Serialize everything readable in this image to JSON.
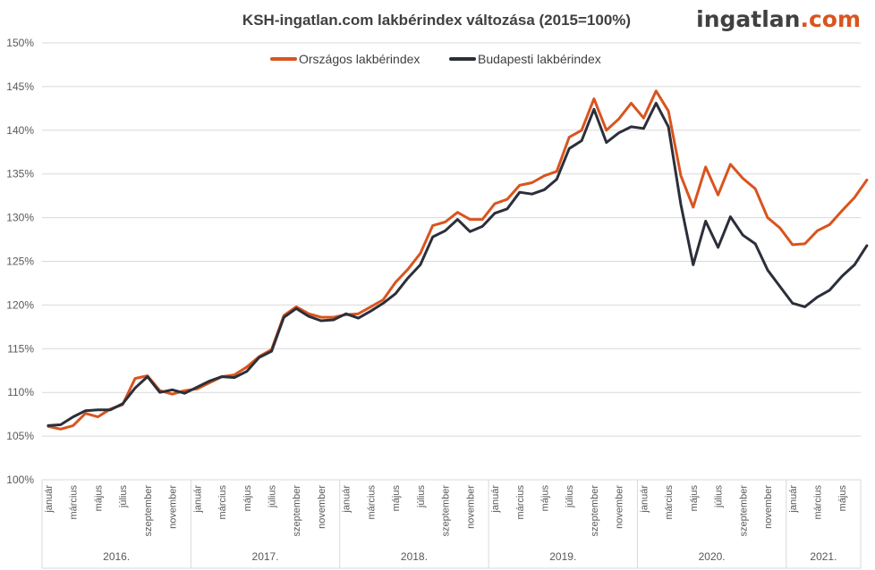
{
  "brand": {
    "prefix": "ingatlan",
    "suffix": ".com",
    "prefix_color": "#404040",
    "suffix_color": "#d9541e"
  },
  "chart_data": {
    "type": "line",
    "title": "KSH-ingatlan.com lakbérindex változása (2015=100%)",
    "xlabel": "",
    "ylabel": "",
    "ylim": [
      100,
      150
    ],
    "ytick_step": 5,
    "ytick_labels": [
      "100%",
      "105%",
      "110%",
      "115%",
      "120%",
      "125%",
      "130%",
      "135%",
      "140%",
      "145%",
      "150%"
    ],
    "grid": true,
    "legend_position": "top-center",
    "month_tick_labels": [
      "január",
      "március",
      "május",
      "július",
      "szeptember",
      "november"
    ],
    "years": [
      "2016.",
      "2017.",
      "2018.",
      "2019.",
      "2020.",
      "2021."
    ],
    "months_per_year": [
      12,
      12,
      12,
      12,
      12,
      6
    ],
    "series": [
      {
        "name": "Országos lakbérindex",
        "color": "#d9541e",
        "values": [
          106.1,
          105.8,
          106.2,
          107.6,
          107.2,
          108.1,
          108.6,
          111.6,
          111.9,
          110.2,
          109.8,
          110.2,
          110.4,
          111.1,
          111.8,
          112.0,
          112.9,
          114.1,
          114.9,
          118.8,
          119.8,
          119.0,
          118.6,
          118.6,
          118.9,
          119.0,
          119.8,
          120.6,
          122.6,
          124.1,
          125.9,
          129.1,
          129.5,
          130.6,
          129.8,
          129.8,
          131.6,
          132.1,
          133.7,
          134.0,
          134.8,
          135.3,
          139.2,
          140.0,
          143.6,
          140.0,
          141.3,
          143.1,
          141.4,
          144.5,
          142.2,
          134.8,
          131.2,
          135.8,
          132.6,
          136.1,
          134.5,
          133.3,
          130.0,
          128.8,
          126.9,
          127.0,
          128.5,
          129.2,
          130.8,
          132.3,
          134.3
        ]
      },
      {
        "name": "Budapesti lakbérindex",
        "color": "#2b2f3a",
        "values": [
          106.2,
          106.3,
          107.2,
          107.9,
          108.0,
          108.0,
          108.7,
          110.5,
          111.8,
          110.0,
          110.3,
          109.9,
          110.6,
          111.3,
          111.8,
          111.7,
          112.4,
          114.0,
          114.7,
          118.6,
          119.6,
          118.7,
          118.2,
          118.3,
          119.0,
          118.5,
          119.3,
          120.2,
          121.3,
          123.1,
          124.6,
          127.8,
          128.5,
          129.8,
          128.4,
          129.0,
          130.5,
          131.0,
          132.9,
          132.7,
          133.2,
          134.4,
          137.9,
          138.8,
          142.4,
          138.6,
          139.7,
          140.4,
          140.2,
          143.1,
          140.4,
          131.5,
          124.6,
          129.6,
          126.6,
          130.1,
          128.0,
          127.0,
          124.0,
          122.1,
          120.2,
          119.8,
          120.9,
          121.7,
          123.3,
          124.6,
          126.8
        ]
      }
    ]
  }
}
